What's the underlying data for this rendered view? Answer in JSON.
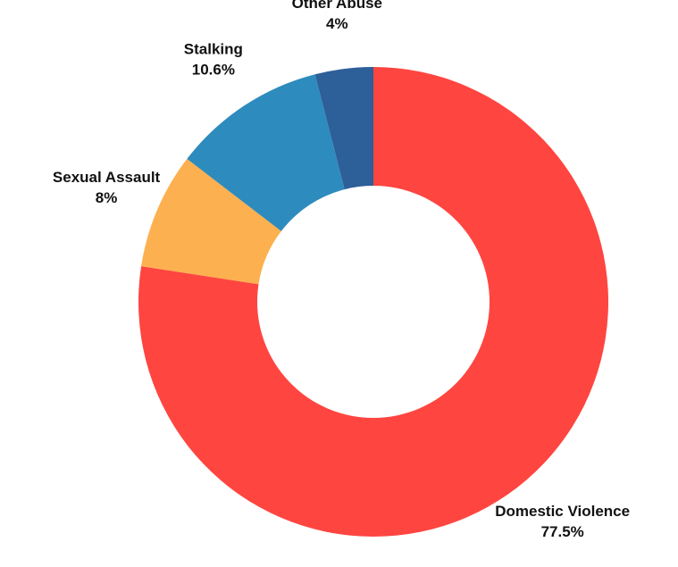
{
  "chart_data": {
    "type": "donut",
    "categories": [
      "Domestic Violence",
      "Sexual Assault",
      "Stalking",
      "Other Abuse"
    ],
    "values": [
      77.5,
      8,
      10.6,
      4
    ],
    "value_labels": [
      "77.5%",
      "8%",
      "10.6%",
      "4%"
    ],
    "colors": [
      "#ff4540",
      "#fdb04f",
      "#2e8bbd",
      "#2d5f99"
    ]
  }
}
